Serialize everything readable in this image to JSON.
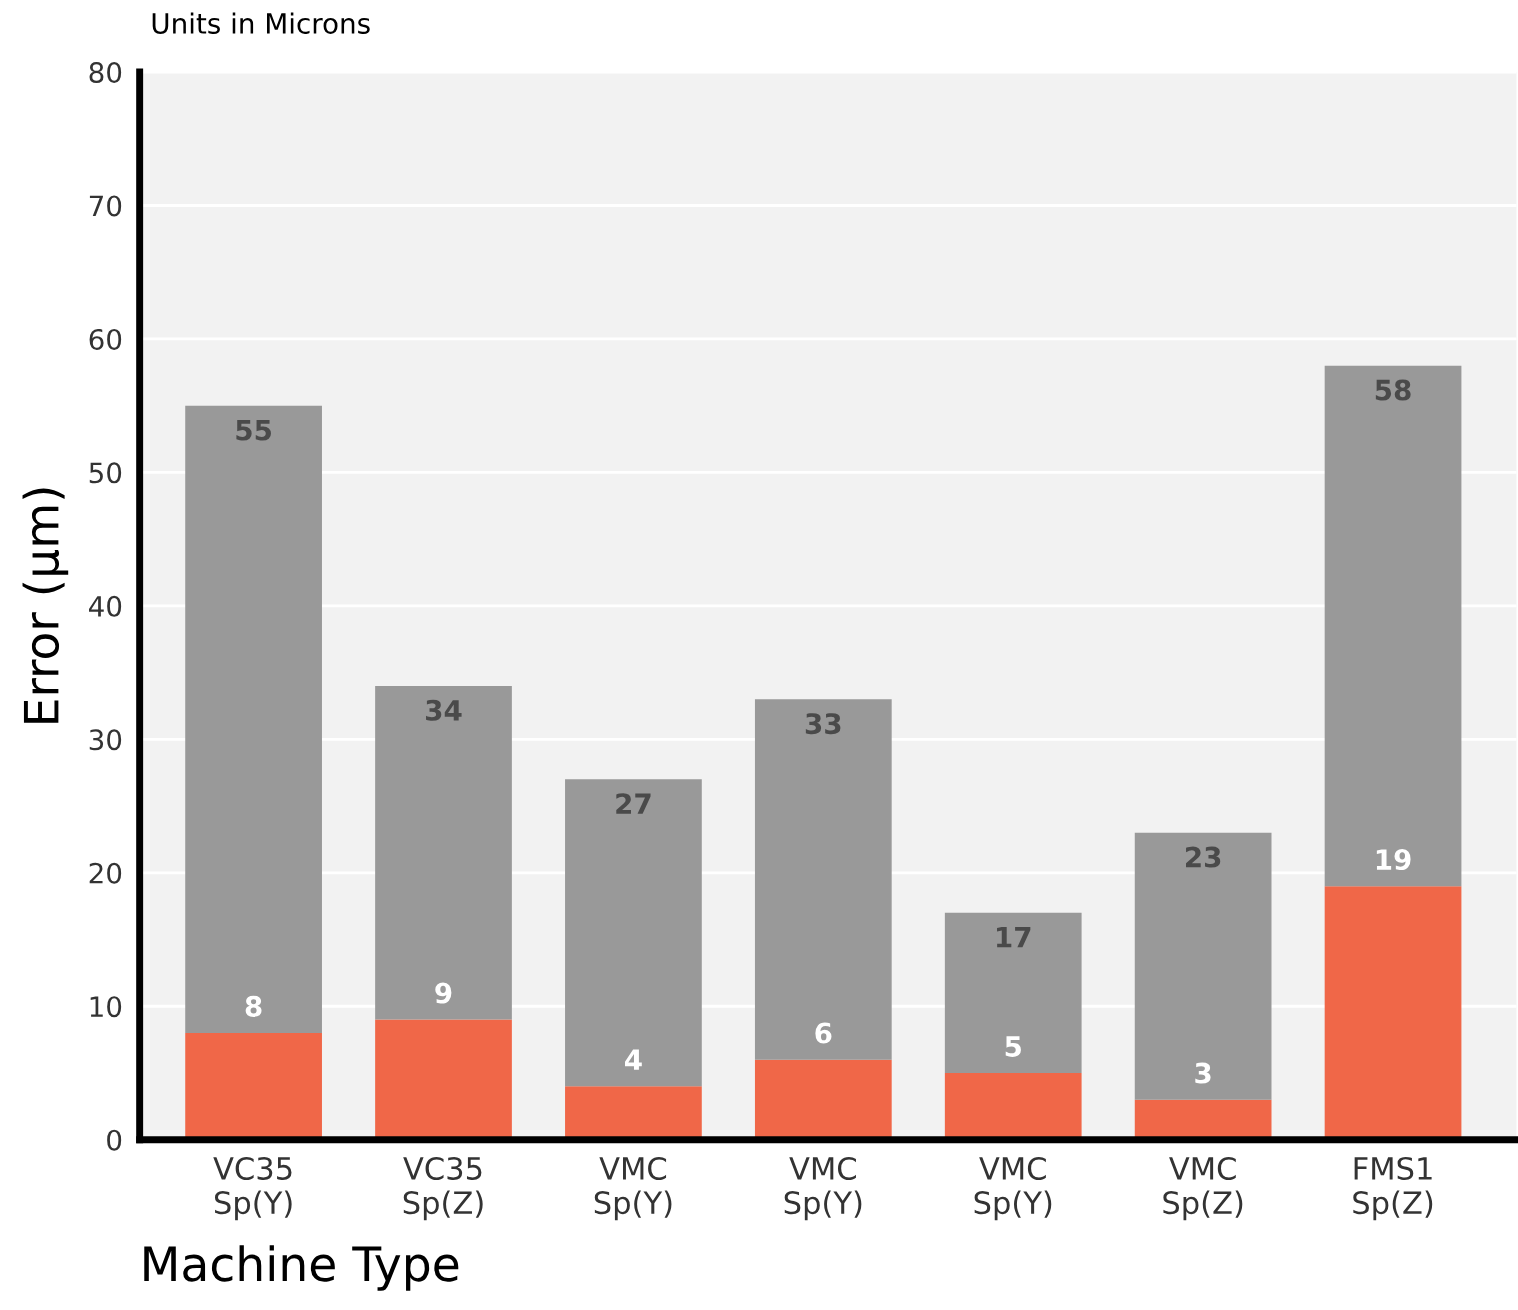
{
  "chart_data": {
    "type": "bar",
    "xlabel": "Machine Type",
    "ylabel": "Error (μm)",
    "annotations": [
      "Units in Microns"
    ],
    "categories": [
      "VC35\nSp(Y)",
      "VC35\nSp(Z)",
      "VMC\nSp(Y)",
      "VMC\nSp(Y)",
      "VMC\nSp(Y)",
      "VMC\nSp(Z)",
      "FMS1\nSp(Z)"
    ],
    "stacked": true,
    "series": [
      {
        "color": "#f06748",
        "values": [
          8,
          9,
          4,
          6,
          5,
          3,
          19
        ],
        "value_labels": [
          "8",
          "9",
          "4",
          "6",
          "5",
          "3",
          "19"
        ]
      },
      {
        "color": "#999999",
        "values": [
          47,
          25,
          23,
          27,
          12,
          20,
          39
        ]
      }
    ],
    "totals": [
      "55",
      "34",
      "27",
      "33",
      "17",
      "23",
      "58"
    ],
    "ylim": [
      0,
      80
    ],
    "yticks": [
      0,
      10,
      20,
      30,
      40,
      50,
      60,
      70,
      80
    ],
    "grid": "y",
    "legend": false
  }
}
